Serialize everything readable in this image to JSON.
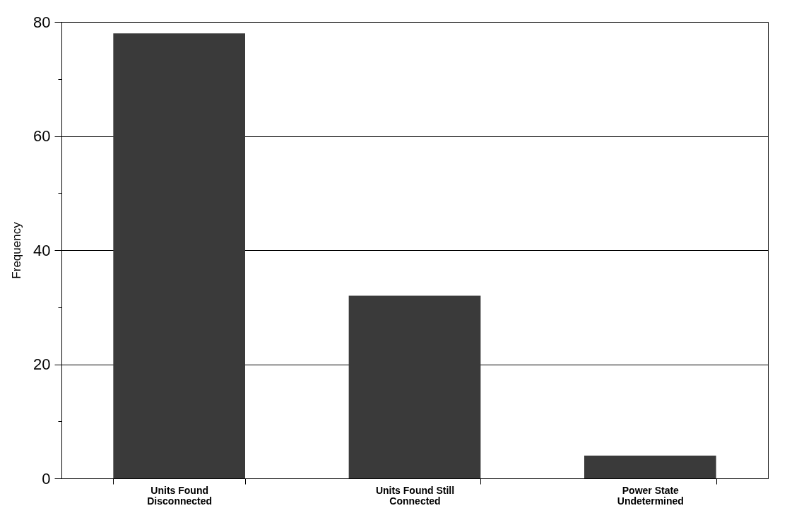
{
  "chart_data": {
    "type": "bar",
    "ylabel": "Frequency",
    "categories": [
      "Units Found Disconnected",
      "Units Found Still Connected",
      "Power State Undetermined"
    ],
    "values": [
      78,
      32,
      4
    ],
    "color": "#3a3a3a",
    "ylim": [
      0,
      80
    ],
    "yticks": [
      0,
      {
        "value": 10,
        "label": null
      },
      20,
      {
        "value": 30,
        "label": null
      },
      40,
      {
        "value": 50,
        "label": null
      },
      60,
      {
        "value": 70,
        "label": null
      },
      80
    ],
    "grid": "y"
  }
}
